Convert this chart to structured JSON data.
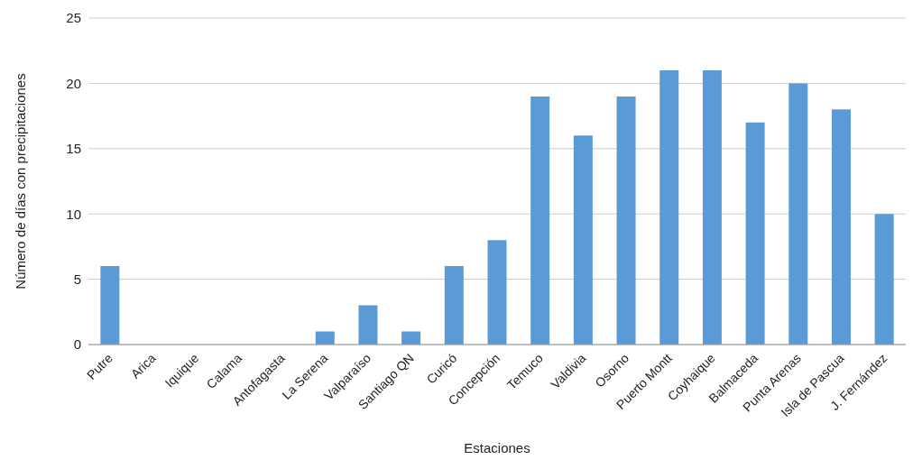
{
  "chart_data": {
    "type": "bar",
    "xlabel": "Estaciones",
    "ylabel": "Número de días con precipitaciones",
    "categories": [
      "Putre",
      "Arica",
      "Iquique",
      "Calama",
      "Antofagasta",
      "La Serena",
      "Valparaíso",
      "Santiago QN",
      "Curicó",
      "Concepción",
      "Temuco",
      "Valdivia",
      "Osorno",
      "Puerto Montt",
      "Coyhaique",
      "Balmaceda",
      "Punta Arenas",
      "Isla de Pascua",
      "J. Fernández"
    ],
    "values": [
      6,
      0,
      0,
      0,
      0,
      1,
      3,
      1,
      6,
      8,
      19,
      16,
      19,
      21,
      21,
      17,
      20,
      18,
      10
    ],
    "color": "#5b9bd5",
    "ylim": [
      0,
      25
    ],
    "yticks": [
      0,
      5,
      10,
      15,
      20,
      25
    ],
    "grid": "y"
  }
}
